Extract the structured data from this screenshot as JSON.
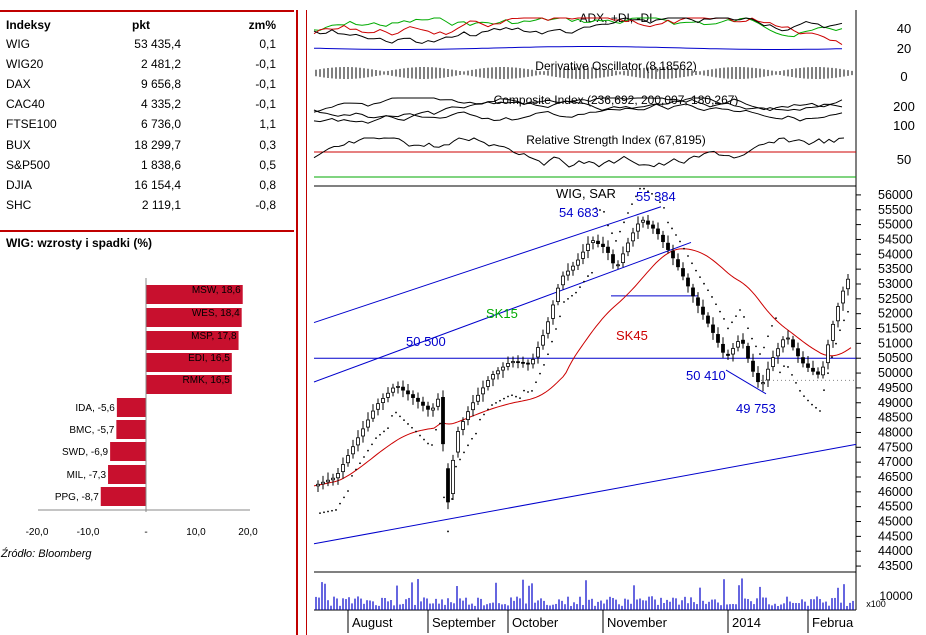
{
  "table": {
    "headers": [
      "Indeksy",
      "pkt",
      "zm%"
    ],
    "rows": [
      {
        "name": "WIG",
        "pkt": "53 435,4",
        "chg": "0,1"
      },
      {
        "name": "WIG20",
        "pkt": "2 481,2",
        "chg": "-0,1"
      },
      {
        "name": "DAX",
        "pkt": "9 656,8",
        "chg": "-0,1"
      },
      {
        "name": "CAC40",
        "pkt": "4 335,2",
        "chg": "-0,1"
      },
      {
        "name": "FTSE100",
        "pkt": "6 736,0",
        "chg": "1,1"
      },
      {
        "name": "BUX",
        "pkt": "18 299,7",
        "chg": "0,3"
      },
      {
        "name": "S&P500",
        "pkt": "1 838,6",
        "chg": "0,5"
      },
      {
        "name": "DJIA",
        "pkt": "16 154,4",
        "chg": "0,8"
      },
      {
        "name": "SHC",
        "pkt": "2 119,1",
        "chg": "-0,8"
      }
    ]
  },
  "bars_title": "WIG: wzrosty i spadki (%)",
  "source": "Źródło: Bloomberg",
  "colors": {
    "accent": "#c00000",
    "bar": "#c8102e",
    "sar": "#000000",
    "trend": "#0000cc",
    "sk15": "#00aa00",
    "sk45": "#cc0000"
  },
  "chart_data": [
    {
      "type": "bar",
      "title": "WIG: wzrosty i spadki (%)",
      "orientation": "horizontal",
      "categories": [
        "MSW",
        "WES",
        "MSP",
        "EDI",
        "RMK",
        "IDA",
        "BMC",
        "SWD",
        "MIL",
        "PPG"
      ],
      "labels": [
        "MSW, 18,6",
        "WES, 18,4",
        "MSP, 17,8",
        "EDI, 16,5",
        "RMK, 16,5",
        "IDA, -5,6",
        "BMC, -5,7",
        "SWD, -6,9",
        "MIL, -7,3",
        "PPG, -8,7"
      ],
      "values": [
        18.6,
        18.4,
        17.8,
        16.5,
        16.5,
        -5.6,
        -5.7,
        -6.9,
        -7.3,
        -8.7
      ],
      "xlim": [
        -20,
        20
      ],
      "xticks": [
        "-20,0",
        "-10,0",
        "-",
        "10,0",
        "20,0"
      ]
    },
    {
      "type": "line",
      "title": "WIG, SAR",
      "months": [
        "August",
        "September",
        "October",
        "November",
        "2014",
        "Februa"
      ],
      "yticks": [
        43500,
        44000,
        44500,
        45000,
        45500,
        46000,
        46500,
        47000,
        47500,
        48000,
        48500,
        49000,
        49500,
        50000,
        50500,
        51000,
        51500,
        52000,
        52500,
        53000,
        53500,
        54000,
        54500,
        55000,
        55500,
        56000
      ],
      "ylim": [
        43300,
        56300
      ],
      "annotations": [
        {
          "text": "54 683",
          "value": 54683
        },
        {
          "text": "55 384",
          "value": 55384
        },
        {
          "text": "50 500",
          "value": 50500
        },
        {
          "text": "50 410",
          "value": 50410
        },
        {
          "text": "49 753",
          "value": 49753
        },
        {
          "text": "SK15"
        },
        {
          "text": "SK45"
        }
      ],
      "sar_label": "WIG, SAR",
      "sk15_label": "SK15",
      "sk45_label": "SK45",
      "volume_tick": "10000",
      "volume_unit": "x100",
      "indicators": [
        {
          "name": "ADX, +DI, -DI",
          "ticks": [
            "40",
            "20"
          ]
        },
        {
          "name": "Derivative Oscillator (8,18562)",
          "ticks": [
            "0"
          ]
        },
        {
          "name": "Composite Index (236,692, 200,007, 180,267)",
          "ticks": [
            "200",
            "100"
          ]
        },
        {
          "name": "Relative Strength Index (67,8195)",
          "ticks": [
            "50"
          ]
        }
      ]
    }
  ]
}
